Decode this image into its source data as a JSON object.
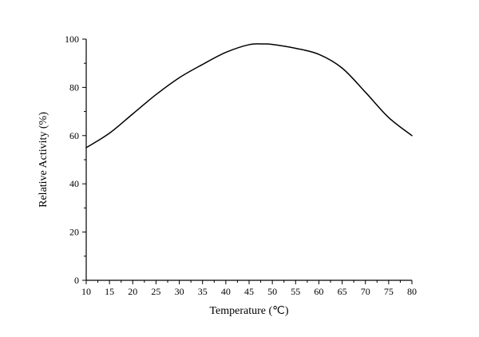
{
  "chart_data": {
    "type": "line",
    "xlabel": "Temperature (℃)",
    "ylabel": "Relative Activity (%)",
    "xlim": [
      10,
      80
    ],
    "ylim": [
      0,
      100
    ],
    "xticks": [
      10,
      15,
      20,
      25,
      30,
      35,
      40,
      45,
      50,
      55,
      60,
      65,
      70,
      75,
      80
    ],
    "yticks": [
      0,
      20,
      40,
      60,
      80,
      100
    ],
    "grid": false,
    "legend": "none",
    "series": [
      {
        "color": "#000000",
        "x": [
          10,
          15,
          20,
          25,
          30,
          35,
          40,
          45,
          48,
          50,
          55,
          60,
          65,
          70,
          75,
          80
        ],
        "y": [
          55,
          61,
          69,
          77,
          84,
          89.5,
          94.5,
          97.7,
          98,
          97.8,
          96.2,
          93.7,
          88,
          78,
          67.5,
          60
        ]
      }
    ]
  }
}
